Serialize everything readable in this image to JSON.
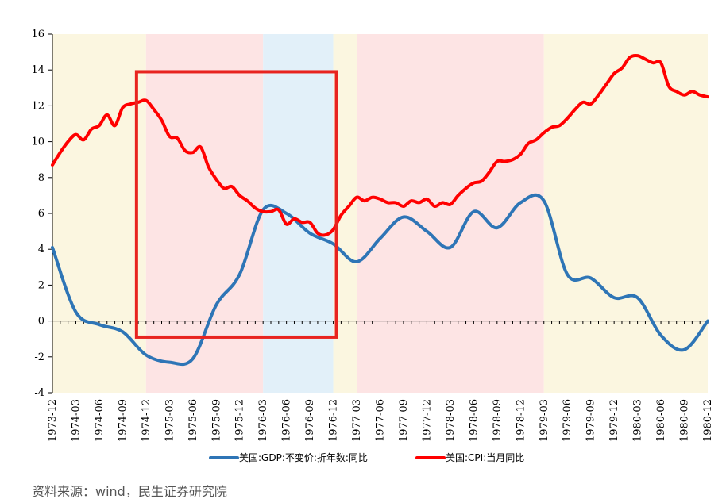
{
  "chart_data": {
    "type": "line",
    "x": [
      "1973-12",
      "1974-01",
      "1974-02",
      "1974-03",
      "1974-04",
      "1974-05",
      "1974-06",
      "1974-07",
      "1974-08",
      "1974-09",
      "1974-10",
      "1974-11",
      "1974-12",
      "1975-01",
      "1975-02",
      "1975-03",
      "1975-04",
      "1975-05",
      "1975-06",
      "1975-07",
      "1975-08",
      "1975-09",
      "1975-10",
      "1975-11",
      "1975-12",
      "1976-01",
      "1976-02",
      "1976-03",
      "1976-04",
      "1976-05",
      "1976-06",
      "1976-07",
      "1976-08",
      "1976-09",
      "1976-10",
      "1976-11",
      "1976-12",
      "1977-01",
      "1977-02",
      "1977-03",
      "1977-04",
      "1977-05",
      "1977-06",
      "1977-07",
      "1977-08",
      "1977-09",
      "1977-10",
      "1977-11",
      "1977-12",
      "1978-01",
      "1978-02",
      "1978-03",
      "1978-04",
      "1978-05",
      "1978-06",
      "1978-07",
      "1978-08",
      "1978-09",
      "1978-10",
      "1978-11",
      "1978-12",
      "1979-01",
      "1979-02",
      "1979-03",
      "1979-04",
      "1979-05",
      "1979-06",
      "1979-07",
      "1979-08",
      "1979-09",
      "1979-10",
      "1979-11",
      "1979-12",
      "1980-01",
      "1980-02",
      "1980-03",
      "1980-04",
      "1980-05",
      "1980-06",
      "1980-07",
      "1980-08",
      "1980-09",
      "1980-10",
      "1980-11",
      "1980-12"
    ],
    "tick_labels": [
      "1973-12",
      "1974-03",
      "1974-06",
      "1974-09",
      "1974-12",
      "1975-03",
      "1975-06",
      "1975-09",
      "1975-12",
      "1976-03",
      "1976-06",
      "1976-09",
      "1976-12",
      "1977-03",
      "1977-06",
      "1977-09",
      "1977-12",
      "1978-03",
      "1978-06",
      "1978-09",
      "1978-12",
      "1979-03",
      "1979-06",
      "1979-09",
      "1979-12",
      "1980-03",
      "1980-06",
      "1980-09",
      "1980-12"
    ],
    "y_ticks": [
      -4,
      -2,
      0,
      2,
      4,
      6,
      8,
      10,
      12,
      14,
      16
    ],
    "ylim": [
      -4,
      16
    ],
    "series": [
      {
        "name": "美国:GDP:不变价:折年数:同比",
        "color": "#2e75b6",
        "values": [
          4.1,
          null,
          null,
          0.5,
          null,
          null,
          -0.2,
          null,
          null,
          -0.6,
          null,
          null,
          -1.9,
          null,
          null,
          -2.3,
          null,
          null,
          -2.1,
          null,
          null,
          0.9,
          null,
          null,
          2.6,
          null,
          null,
          6.2,
          null,
          null,
          6.0,
          null,
          null,
          4.9,
          null,
          null,
          4.3,
          null,
          null,
          3.3,
          null,
          null,
          4.6,
          null,
          null,
          5.8,
          null,
          null,
          5.0,
          null,
          null,
          4.1,
          null,
          null,
          6.1,
          null,
          null,
          5.2,
          null,
          null,
          6.6,
          null,
          null,
          6.7,
          null,
          null,
          2.6,
          null,
          null,
          2.4,
          null,
          null,
          1.3,
          null,
          null,
          1.3,
          null,
          null,
          -0.8,
          null,
          null,
          -1.6,
          null,
          null,
          0.0
        ]
      },
      {
        "name": "美国:CPI:当月同比",
        "color": "#ff0000",
        "values": [
          8.7,
          9.4,
          10.0,
          10.4,
          10.1,
          10.7,
          10.9,
          11.5,
          10.9,
          11.9,
          12.1,
          12.2,
          12.3,
          11.8,
          11.2,
          10.3,
          10.2,
          9.5,
          9.4,
          9.7,
          8.6,
          7.9,
          7.4,
          7.5,
          7.0,
          6.7,
          6.3,
          6.1,
          6.1,
          6.2,
          5.4,
          5.7,
          5.5,
          5.5,
          4.9,
          4.8,
          5.1,
          5.9,
          6.4,
          6.9,
          6.7,
          6.9,
          6.8,
          6.6,
          6.6,
          6.4,
          6.7,
          6.6,
          6.8,
          6.4,
          6.6,
          6.5,
          7.0,
          7.4,
          7.7,
          7.8,
          8.3,
          8.9,
          8.9,
          9.0,
          9.3,
          9.9,
          10.1,
          10.5,
          10.8,
          10.9,
          11.3,
          11.8,
          12.2,
          12.1,
          12.6,
          13.2,
          13.8,
          14.1,
          14.7,
          14.8,
          14.6,
          14.4,
          14.4,
          13.1,
          12.8,
          12.6,
          12.8,
          12.6,
          12.5
        ]
      }
    ],
    "shaded_regions": [
      {
        "from": "1973-12",
        "to": "1974-12",
        "color": "#fbf6e0"
      },
      {
        "from": "1974-12",
        "to": "1976-03",
        "color": "#fde4e4"
      },
      {
        "from": "1976-03",
        "to": "1976-12",
        "color": "#e2f0f9"
      },
      {
        "from": "1976-12",
        "to": "1977-03",
        "color": "#fbf6e0"
      },
      {
        "from": "1977-03",
        "to": "1979-03",
        "color": "#fde4e4"
      },
      {
        "from": "1979-03",
        "to": "1980-12",
        "color": "#fbf6e0"
      }
    ],
    "highlight_box": {
      "from": "1974-12",
      "to": "1976-12",
      "y_from": -0.9,
      "y_to": 13.9,
      "color": "#e8231f"
    },
    "legend_position": "bottom",
    "grid": false
  },
  "source_note": "资料来源：wind，民生证券研究院"
}
